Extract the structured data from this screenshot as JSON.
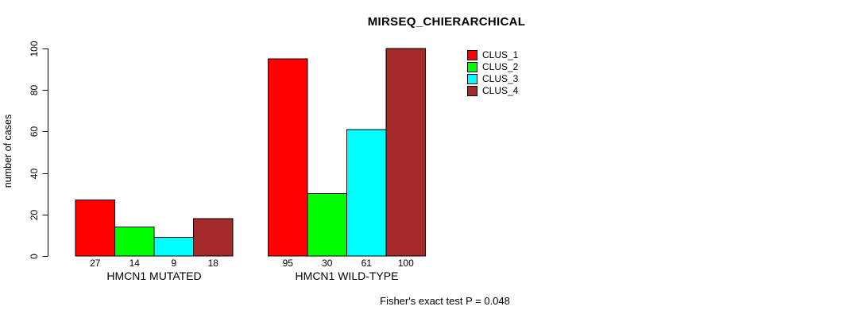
{
  "chart_data": {
    "type": "bar",
    "title": "MIRSEQ_CHIERARCHICAL",
    "ylabel": "number of cases",
    "xlabel": "",
    "ylim": [
      0,
      100
    ],
    "yticks": [
      0,
      20,
      40,
      60,
      80,
      100
    ],
    "categories": [
      "HMCN1 MUTATED",
      "HMCN1 WILD-TYPE"
    ],
    "series": [
      {
        "name": "CLUS_1",
        "color": "#FF0000",
        "values": [
          27,
          95
        ]
      },
      {
        "name": "CLUS_2",
        "color": "#00FF00",
        "values": [
          14,
          30
        ]
      },
      {
        "name": "CLUS_3",
        "color": "#00FFFF",
        "values": [
          9,
          61
        ]
      },
      {
        "name": "CLUS_4",
        "color": "#A52A2A",
        "values": [
          18,
          100
        ]
      }
    ],
    "bar_value_labels": true,
    "legend_position": "top-right",
    "grid": false,
    "annotation": "Fisher's exact test P = 0.048"
  },
  "colors": {
    "background": "#FFFFFF",
    "axis": "#000000",
    "text": "#000000",
    "bar_border": "#000000"
  }
}
